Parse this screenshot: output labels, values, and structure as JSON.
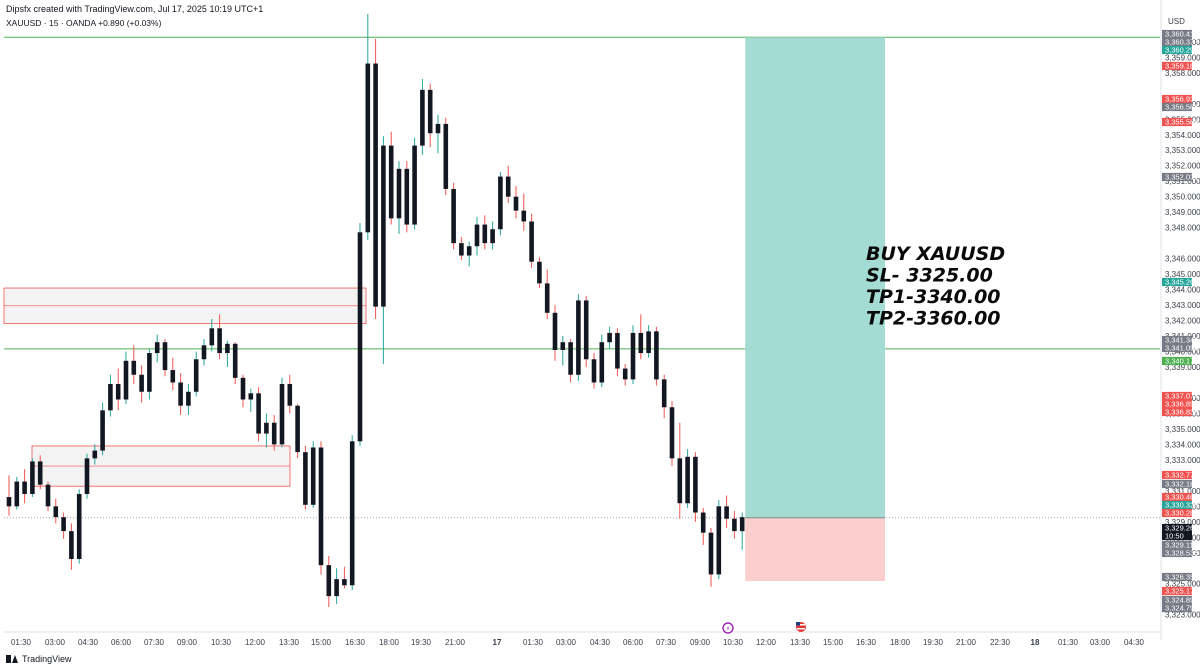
{
  "header": {
    "credit": "Dipsfx created with TradingView.com, Jul 17, 2025 10:19 UTC+1",
    "symbol_line": "XAUUSD · 15 · OANDA  +0.890 (+0.03%)"
  },
  "footer": {
    "brand": "TradingView"
  },
  "colors": {
    "up": "#131722",
    "down": "#131722",
    "wick_up": "#26a69a",
    "wick_down": "#ef5350",
    "target_zone": "#a4dcd3",
    "stop_zone": "#fbcfcd",
    "level_line": "#4caf50",
    "zone_border": "#ef5350",
    "zone_fill": "#eeeeee"
  },
  "trade_note": [
    "BUY XAUUSD",
    "SL- 3325.00",
    "TP1-3340.00",
    "TP2-3360.00"
  ],
  "chart_data": {
    "type": "candlestick",
    "symbol": "XAUUSD",
    "interval": "15",
    "broker": "OANDA",
    "change": "+0.890 (+0.03%)",
    "currency": "USD",
    "ylim": [
      3322.4,
      3361.8
    ],
    "y_ticks": [
      "3,323.000",
      "3,325.000",
      "3,327.000",
      "3,328.000",
      "3,329.000",
      "3,330.000",
      "3,331.000",
      "3,333.000",
      "3,334.000",
      "3,335.000",
      "3,336.000",
      "3,337.000",
      "3,339.000",
      "3,340.000",
      "3,341.000",
      "3,342.000",
      "3,343.000",
      "3,344.000",
      "3,345.000",
      "3,346.000",
      "3,348.000",
      "3,349.000",
      "3,350.000",
      "3,351.000",
      "3,352.000",
      "3,353.000",
      "3,354.000",
      "3,355.000",
      "3,356.000",
      "3,358.000",
      "3,359.000",
      "3,360.000"
    ],
    "x_ticks": [
      "01:30",
      "03:00",
      "04:30",
      "06:00",
      "07:30",
      "09:00",
      "10:30",
      "12:00",
      "13:30",
      "15:00",
      "16:30",
      "18:00",
      "19:30",
      "21:00",
      "17",
      "01:30",
      "03:00",
      "04:30",
      "06:00",
      "07:30",
      "09:00",
      "10:30",
      "12:00",
      "13:30",
      "15:00",
      "16:30",
      "18:00",
      "19:30",
      "21:00",
      "22:30",
      "18",
      "01:30",
      "03:00",
      "04:30"
    ],
    "candles": [
      [
        3330.6,
        3332.0,
        3329.4,
        3330.0
      ],
      [
        3330.0,
        3331.9,
        3329.8,
        3331.6
      ],
      [
        3331.6,
        3332.4,
        3330.2,
        3330.8
      ],
      [
        3330.8,
        3333.1,
        3330.6,
        3332.9
      ],
      [
        3332.9,
        3333.3,
        3331.1,
        3331.4
      ],
      [
        3331.4,
        3331.6,
        3329.7,
        3330.0
      ],
      [
        3330.0,
        3330.5,
        3328.9,
        3329.3
      ],
      [
        3329.3,
        3329.6,
        3327.9,
        3328.4
      ],
      [
        3328.4,
        3328.9,
        3325.9,
        3326.6
      ],
      [
        3326.6,
        3331.1,
        3326.3,
        3330.8
      ],
      [
        3330.8,
        3333.4,
        3330.5,
        3333.1
      ],
      [
        3333.1,
        3334.0,
        3332.7,
        3333.6
      ],
      [
        3333.6,
        3336.7,
        3333.3,
        3336.2
      ],
      [
        3336.2,
        3338.5,
        3335.8,
        3337.9
      ],
      [
        3337.9,
        3338.9,
        3336.2,
        3336.9
      ],
      [
        3336.9,
        3340.0,
        3336.6,
        3339.4
      ],
      [
        3339.4,
        3340.4,
        3337.9,
        3338.5
      ],
      [
        3338.5,
        3339.1,
        3336.7,
        3337.4
      ],
      [
        3337.4,
        3340.2,
        3336.9,
        3339.9
      ],
      [
        3339.9,
        3341.1,
        3339.3,
        3340.6
      ],
      [
        3340.6,
        3340.8,
        3338.4,
        3338.8
      ],
      [
        3338.8,
        3339.6,
        3337.5,
        3338.0
      ],
      [
        3338.0,
        3338.6,
        3335.9,
        3336.5
      ],
      [
        3336.5,
        3337.9,
        3335.9,
        3337.4
      ],
      [
        3337.4,
        3340.0,
        3337.1,
        3339.5
      ],
      [
        3339.5,
        3340.8,
        3339.1,
        3340.4
      ],
      [
        3340.4,
        3342.1,
        3340.0,
        3341.5
      ],
      [
        3341.5,
        3342.4,
        3339.5,
        3339.9
      ],
      [
        3339.9,
        3340.7,
        3339.0,
        3340.5
      ],
      [
        3340.5,
        3340.6,
        3337.9,
        3338.3
      ],
      [
        3338.3,
        3338.5,
        3336.4,
        3336.9
      ],
      [
        3336.9,
        3337.6,
        3336.1,
        3337.3
      ],
      [
        3337.3,
        3337.7,
        3334.2,
        3334.7
      ],
      [
        3334.7,
        3336.0,
        3333.8,
        3335.4
      ],
      [
        3335.4,
        3335.9,
        3333.6,
        3334.0
      ],
      [
        3334.0,
        3338.3,
        3333.8,
        3337.9
      ],
      [
        3337.9,
        3338.5,
        3336.0,
        3336.5
      ],
      [
        3336.5,
        3336.6,
        3333.1,
        3333.5
      ],
      [
        3333.5,
        3333.9,
        3329.8,
        3330.1
      ],
      [
        3330.1,
        3334.2,
        3329.9,
        3333.8
      ],
      [
        3333.8,
        3334.2,
        3325.6,
        3326.2
      ],
      [
        3326.2,
        3326.8,
        3323.5,
        3324.2
      ],
      [
        3324.2,
        3326.0,
        3323.7,
        3325.3
      ],
      [
        3325.3,
        3326.1,
        3324.7,
        3324.9
      ],
      [
        3324.9,
        3334.6,
        3324.6,
        3334.2
      ],
      [
        3334.2,
        3348.3,
        3333.9,
        3347.7
      ],
      [
        3347.7,
        3361.8,
        3347.2,
        3358.6
      ],
      [
        3358.6,
        3360.2,
        3342.1,
        3342.9
      ],
      [
        3342.9,
        3353.9,
        3339.2,
        3353.3
      ],
      [
        3353.3,
        3354.2,
        3348.2,
        3348.6
      ],
      [
        3348.6,
        3352.3,
        3347.6,
        3351.8
      ],
      [
        3351.8,
        3352.3,
        3347.7,
        3348.2
      ],
      [
        3348.2,
        3353.8,
        3347.9,
        3353.3
      ],
      [
        3353.3,
        3357.6,
        3352.7,
        3356.9
      ],
      [
        3356.9,
        3357.3,
        3353.2,
        3354.1
      ],
      [
        3354.1,
        3355.3,
        3352.8,
        3354.7
      ],
      [
        3354.7,
        3355.1,
        3350.1,
        3350.5
      ],
      [
        3350.5,
        3350.9,
        3346.6,
        3347.0
      ],
      [
        3347.0,
        3347.4,
        3345.9,
        3346.2
      ],
      [
        3346.2,
        3347.1,
        3345.5,
        3346.8
      ],
      [
        3346.8,
        3348.7,
        3346.2,
        3348.2
      ],
      [
        3348.2,
        3348.8,
        3346.6,
        3347.0
      ],
      [
        3347.0,
        3348.4,
        3346.6,
        3347.9
      ],
      [
        3347.9,
        3351.6,
        3347.5,
        3351.3
      ],
      [
        3351.3,
        3352.0,
        3349.6,
        3350.0
      ],
      [
        3350.0,
        3350.7,
        3348.6,
        3349.1
      ],
      [
        3349.1,
        3350.2,
        3347.8,
        3348.4
      ],
      [
        3348.4,
        3348.9,
        3345.4,
        3345.8
      ],
      [
        3345.8,
        3346.1,
        3344.1,
        3344.4
      ],
      [
        3344.4,
        3345.3,
        3342.1,
        3342.5
      ],
      [
        3342.5,
        3343.0,
        3339.4,
        3340.1
      ],
      [
        3340.1,
        3341.0,
        3339.1,
        3340.6
      ],
      [
        3340.6,
        3340.8,
        3338.0,
        3338.5
      ],
      [
        3338.5,
        3343.7,
        3338.1,
        3343.3
      ],
      [
        3343.3,
        3343.6,
        3339.0,
        3339.5
      ],
      [
        3339.5,
        3339.9,
        3337.6,
        3338.0
      ],
      [
        3338.0,
        3341.1,
        3337.7,
        3340.6
      ],
      [
        3340.6,
        3341.6,
        3340.2,
        3341.2
      ],
      [
        3341.2,
        3341.5,
        3338.4,
        3338.9
      ],
      [
        3338.9,
        3339.2,
        3337.8,
        3338.2
      ],
      [
        3338.2,
        3341.7,
        3337.9,
        3341.2
      ],
      [
        3341.2,
        3342.4,
        3339.5,
        3339.9
      ],
      [
        3339.9,
        3341.7,
        3339.6,
        3341.3
      ],
      [
        3341.3,
        3341.6,
        3337.8,
        3338.2
      ],
      [
        3338.2,
        3338.5,
        3335.7,
        3336.4
      ],
      [
        3336.4,
        3336.8,
        3332.6,
        3333.1
      ],
      [
        3333.1,
        3335.4,
        3329.2,
        3330.2
      ],
      [
        3330.2,
        3333.7,
        3329.9,
        3333.2
      ],
      [
        3333.2,
        3333.5,
        3329.0,
        3329.6
      ],
      [
        3329.6,
        3329.9,
        3327.5,
        3328.3
      ],
      [
        3328.3,
        3328.6,
        3324.8,
        3325.6
      ],
      [
        3325.6,
        3330.4,
        3325.3,
        3330.0
      ],
      [
        3330.0,
        3330.7,
        3328.6,
        3329.2
      ],
      [
        3329.2,
        3329.7,
        3327.9,
        3328.4
      ],
      [
        3328.4,
        3329.6,
        3327.2,
        3329.3
      ]
    ],
    "horizontal_levels": [
      3360.296,
      3340.173
    ],
    "resistance_zones": [
      [
        3341.8,
        3344.1
      ],
      [
        3331.3,
        3333.9
      ]
    ],
    "position": {
      "type": "long",
      "entry": 3329.26,
      "target": 3360.296,
      "stop": 3325.177
    },
    "price_tags": [
      {
        "label": "3,360.417",
        "color": "#787b86"
      },
      {
        "label": "3,360.377",
        "color": "#787b86"
      },
      {
        "label": "3,360.296",
        "color": "#26a69a"
      },
      {
        "label": "3,359.181",
        "color": "#ef5350"
      },
      {
        "label": "3,356.935",
        "color": "#ef5350"
      },
      {
        "label": "3,356.588",
        "color": "#787b86"
      },
      {
        "label": "3,355.568",
        "color": "#ef5350"
      },
      {
        "label": "3,352.031",
        "color": "#787b86"
      },
      {
        "label": "3,345.268",
        "color": "#26a69a"
      },
      {
        "label": "3,341.349",
        "color": "#787b86"
      },
      {
        "label": "3,341.095",
        "color": "#787b86"
      },
      {
        "label": "3,340.173",
        "color": "#4caf50"
      },
      {
        "label": "3,337.074",
        "color": "#ef5350"
      },
      {
        "label": "3,336.899",
        "color": "#ef5350"
      },
      {
        "label": "3,336.838",
        "color": "#ef5350"
      },
      {
        "label": "3,332.773",
        "color": "#ef5350"
      },
      {
        "label": "3,332.181",
        "color": "#787b86"
      },
      {
        "label": "3,330.464",
        "color": "#ef5350"
      },
      {
        "label": "3,330.329",
        "color": "#26a69a"
      },
      {
        "label": "3,330.285",
        "color": "#ef5350"
      },
      {
        "label": "3,329.260",
        "color": "#131722"
      },
      {
        "label": "10:50",
        "color": "#131722"
      },
      {
        "label": "3,329.116",
        "color": "#787b86"
      },
      {
        "label": "3,328.535",
        "color": "#787b86"
      },
      {
        "label": "3,326.358",
        "color": "#787b86"
      },
      {
        "label": "3,325.177",
        "color": "#ef5350"
      },
      {
        "label": "3,324.896",
        "color": "#787b86"
      },
      {
        "label": "3,324.796",
        "color": "#787b86"
      }
    ]
  }
}
